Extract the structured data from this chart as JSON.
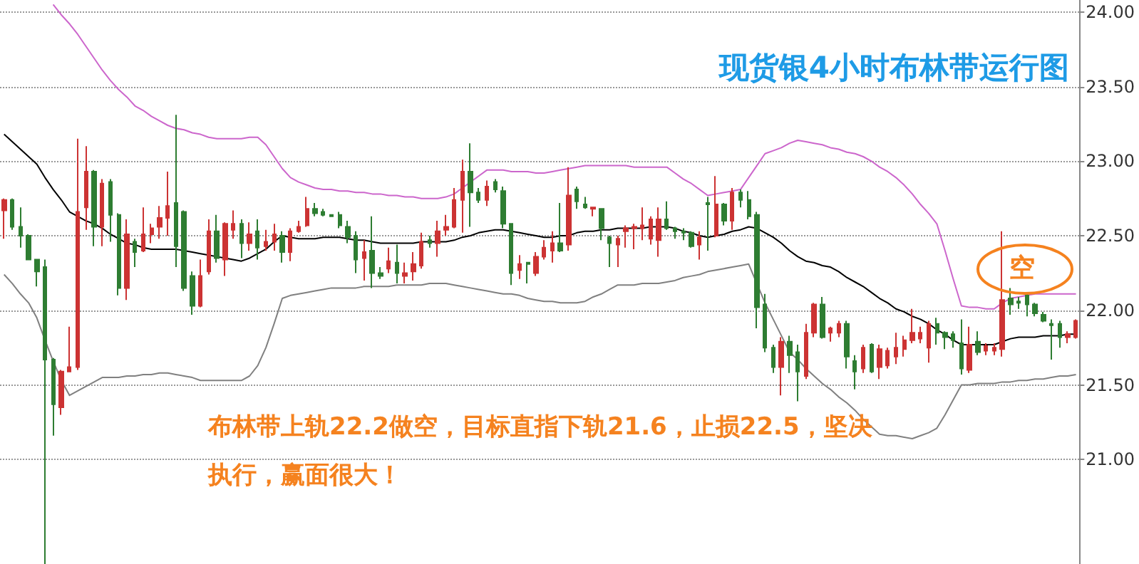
{
  "chart_data": {
    "type": "candlestick",
    "title": "现货银4小时布林带运行图",
    "annotations": [
      "布林带上轨22.2做空，目标直指下轨21.6，止损22.5，坚决执行，赢面很大！",
      "空"
    ],
    "categories": [
      null,
      null,
      null,
      null,
      null,
      null,
      null,
      null,
      null,
      null,
      null,
      null,
      null,
      null,
      null,
      null,
      null,
      null,
      null,
      null,
      null,
      null,
      null,
      null,
      null,
      null,
      null,
      null,
      null,
      null,
      null,
      null,
      null,
      null,
      null,
      null,
      null,
      null,
      null,
      null,
      null,
      null,
      null,
      null,
      null,
      null,
      null,
      null,
      null,
      null,
      null,
      null,
      null,
      null,
      null,
      null,
      null,
      null,
      null,
      null,
      null,
      null,
      null,
      null,
      null,
      null,
      null,
      null,
      null,
      null,
      null,
      null,
      null,
      null,
      null,
      null,
      null,
      null,
      null,
      null,
      null,
      null,
      null,
      null,
      null,
      null,
      null,
      null,
      null,
      null,
      null,
      null,
      null,
      null,
      null,
      null,
      null,
      null,
      null,
      null,
      null,
      null,
      null,
      null,
      null,
      null,
      null,
      null,
      null,
      null,
      null,
      null,
      null,
      null,
      null,
      null,
      null,
      null,
      null,
      null,
      null,
      null,
      null,
      null,
      null,
      null,
      null,
      null,
      null,
      null,
      null,
      null
    ],
    "ohlc": [
      [
        22.67,
        22.75,
        22.48,
        22.74
      ],
      [
        22.74,
        22.75,
        22.54,
        22.56
      ],
      [
        22.56,
        22.69,
        22.42,
        22.5
      ],
      [
        22.5,
        22.51,
        22.34,
        22.34
      ],
      [
        22.34,
        22.34,
        22.16,
        22.26
      ],
      [
        22.29,
        22.34,
        20.3,
        21.67
      ],
      [
        21.67,
        21.68,
        21.16,
        21.37
      ],
      [
        21.35,
        21.6,
        21.3,
        21.59
      ],
      [
        21.59,
        21.89,
        21.59,
        21.62
      ],
      [
        21.62,
        23.15,
        21.6,
        22.66
      ],
      [
        22.69,
        23.1,
        22.54,
        22.93
      ],
      [
        22.93,
        22.94,
        22.43,
        22.56
      ],
      [
        22.56,
        22.88,
        22.43,
        22.85
      ],
      [
        22.86,
        22.88,
        22.46,
        22.64
      ],
      [
        22.64,
        22.65,
        22.1,
        22.15
      ],
      [
        22.15,
        22.61,
        22.07,
        22.51
      ],
      [
        22.46,
        22.48,
        22.29,
        22.39
      ],
      [
        22.4,
        22.69,
        22.39,
        22.51
      ],
      [
        22.51,
        22.58,
        22.45,
        22.55
      ],
      [
        22.56,
        22.7,
        22.48,
        22.62
      ],
      [
        22.62,
        22.93,
        22.5,
        22.7
      ],
      [
        22.72,
        23.31,
        22.29,
        22.43
      ],
      [
        22.66,
        22.67,
        22.13,
        22.15
      ],
      [
        22.23,
        22.26,
        21.97,
        22.03
      ],
      [
        22.03,
        22.34,
        22.02,
        22.23
      ],
      [
        22.26,
        22.61,
        22.24,
        22.53
      ],
      [
        22.53,
        22.64,
        22.32,
        22.35
      ],
      [
        22.34,
        22.59,
        22.23,
        22.58
      ],
      [
        22.54,
        22.67,
        22.48,
        22.58
      ],
      [
        22.58,
        22.61,
        22.35,
        22.45
      ],
      [
        22.45,
        22.59,
        22.4,
        22.51
      ],
      [
        22.53,
        22.61,
        22.34,
        22.42
      ],
      [
        22.43,
        22.54,
        22.4,
        22.46
      ],
      [
        22.46,
        22.58,
        22.4,
        22.51
      ],
      [
        22.5,
        22.53,
        22.32,
        22.39
      ],
      [
        22.39,
        22.55,
        22.33,
        22.53
      ],
      [
        22.53,
        22.6,
        22.52,
        22.56
      ],
      [
        22.57,
        22.76,
        22.56,
        22.68
      ],
      [
        22.68,
        22.72,
        22.63,
        22.65
      ],
      [
        22.66,
        22.68,
        22.63,
        22.64
      ],
      [
        22.64,
        22.64,
        22.63,
        22.63
      ],
      [
        22.64,
        22.66,
        22.55,
        22.57
      ],
      [
        22.56,
        22.6,
        22.45,
        22.49
      ],
      [
        22.5,
        22.53,
        22.25,
        22.34
      ],
      [
        22.35,
        22.47,
        22.2,
        22.39
      ],
      [
        22.4,
        22.63,
        22.15,
        22.25
      ],
      [
        22.25,
        22.29,
        22.21,
        22.23
      ],
      [
        22.28,
        22.42,
        22.25,
        22.33
      ],
      [
        22.32,
        22.44,
        22.18,
        22.25
      ],
      [
        22.23,
        22.32,
        22.18,
        22.25
      ],
      [
        22.26,
        22.39,
        22.2,
        22.31
      ],
      [
        22.3,
        22.52,
        22.28,
        22.46
      ],
      [
        22.47,
        22.5,
        22.42,
        22.45
      ],
      [
        22.45,
        22.6,
        22.36,
        22.53
      ],
      [
        22.54,
        22.64,
        22.5,
        22.56
      ],
      [
        22.56,
        22.82,
        22.55,
        22.74
      ],
      [
        22.74,
        23.01,
        22.52,
        22.93
      ],
      [
        22.93,
        23.12,
        22.56,
        22.79
      ],
      [
        22.79,
        22.82,
        22.72,
        22.74
      ],
      [
        22.74,
        22.87,
        22.7,
        22.83
      ],
      [
        22.86,
        22.88,
        22.79,
        22.81
      ],
      [
        22.8,
        22.83,
        22.55,
        22.58
      ],
      [
        22.58,
        22.58,
        22.17,
        22.25
      ],
      [
        22.27,
        22.37,
        22.21,
        22.31
      ],
      [
        22.32,
        22.32,
        22.18,
        22.31
      ],
      [
        22.25,
        22.39,
        22.23,
        22.36
      ],
      [
        22.36,
        22.47,
        22.34,
        22.42
      ],
      [
        22.4,
        22.53,
        22.32,
        22.45
      ],
      [
        22.45,
        22.72,
        22.39,
        22.4
      ],
      [
        22.44,
        22.96,
        22.4,
        22.77
      ],
      [
        22.81,
        22.83,
        22.68,
        22.73
      ],
      [
        22.71,
        22.76,
        22.68,
        22.69
      ],
      [
        22.68,
        22.69,
        22.63,
        22.69
      ],
      [
        22.68,
        22.68,
        22.47,
        22.55
      ],
      [
        22.49,
        22.5,
        22.29,
        22.45
      ],
      [
        22.44,
        22.5,
        22.29,
        22.48
      ],
      [
        22.53,
        22.57,
        22.42,
        22.55
      ],
      [
        22.55,
        22.58,
        22.41,
        22.56
      ],
      [
        22.55,
        22.69,
        22.47,
        22.57
      ],
      [
        22.48,
        22.63,
        22.44,
        22.61
      ],
      [
        22.47,
        22.69,
        22.36,
        22.61
      ],
      [
        22.61,
        22.73,
        22.54,
        22.55
      ],
      [
        22.55,
        22.56,
        22.48,
        22.53
      ],
      [
        22.53,
        22.55,
        22.47,
        22.52
      ],
      [
        22.52,
        22.53,
        22.42,
        22.43
      ],
      [
        22.44,
        22.53,
        22.34,
        22.49
      ],
      [
        22.72,
        22.76,
        22.4,
        22.71
      ],
      [
        22.5,
        22.9,
        22.49,
        22.71
      ],
      [
        22.71,
        22.72,
        22.57,
        22.6
      ],
      [
        22.6,
        22.82,
        22.54,
        22.79
      ],
      [
        22.79,
        22.81,
        22.69,
        22.74
      ],
      [
        22.74,
        22.8,
        22.61,
        22.63
      ],
      [
        22.64,
        22.66,
        21.88,
        22.02
      ],
      [
        22.04,
        22.11,
        21.72,
        21.75
      ],
      [
        21.75,
        21.77,
        21.58,
        21.62
      ],
      [
        21.62,
        21.82,
        21.43,
        21.79
      ],
      [
        21.79,
        21.83,
        21.58,
        21.7
      ],
      [
        21.72,
        21.77,
        21.39,
        21.59
      ],
      [
        21.56,
        21.91,
        21.54,
        21.85
      ],
      [
        21.85,
        22.05,
        21.82,
        22.04
      ],
      [
        22.04,
        22.09,
        21.81,
        21.82
      ],
      [
        21.85,
        21.89,
        21.79,
        21.88
      ],
      [
        21.85,
        21.93,
        21.82,
        21.91
      ],
      [
        21.91,
        21.93,
        21.61,
        21.69
      ],
      [
        21.66,
        21.7,
        21.47,
        21.59
      ],
      [
        21.61,
        21.77,
        21.58,
        21.75
      ],
      [
        21.77,
        21.78,
        21.58,
        21.59
      ],
      [
        21.62,
        21.77,
        21.54,
        21.74
      ],
      [
        21.63,
        21.75,
        21.61,
        21.73
      ],
      [
        21.69,
        21.85,
        21.64,
        21.75
      ],
      [
        21.74,
        21.83,
        21.69,
        21.8
      ],
      [
        21.8,
        22.01,
        21.78,
        21.85
      ],
      [
        21.81,
        21.89,
        21.78,
        21.85
      ],
      [
        21.75,
        21.93,
        21.65,
        21.91
      ],
      [
        21.91,
        21.95,
        21.77,
        21.85
      ],
      [
        21.85,
        21.86,
        21.74,
        21.82
      ],
      [
        21.84,
        21.86,
        21.75,
        21.8
      ],
      [
        21.78,
        21.94,
        21.57,
        21.61
      ],
      [
        21.6,
        21.89,
        21.58,
        21.77
      ],
      [
        21.79,
        21.86,
        21.7,
        21.72
      ],
      [
        21.73,
        21.78,
        21.7,
        21.76
      ],
      [
        21.73,
        21.78,
        21.7,
        21.75
      ],
      [
        21.74,
        22.53,
        21.69,
        22.07
      ],
      [
        22.08,
        22.15,
        21.97,
        22.04
      ],
      [
        22.06,
        22.09,
        22.01,
        22.05
      ],
      [
        22.1,
        22.11,
        21.96,
        22.04
      ],
      [
        22.04,
        22.05,
        21.96,
        21.98
      ],
      [
        21.97,
        21.99,
        21.92,
        21.93
      ],
      [
        21.91,
        21.94,
        21.67,
        21.9
      ],
      [
        21.91,
        21.93,
        21.75,
        21.82
      ],
      [
        21.82,
        21.86,
        21.78,
        21.84
      ],
      [
        21.82,
        21.94,
        21.81,
        21.93
      ]
    ],
    "colors": [
      "#cc3333",
      "#2e7d32",
      "#2e7d32",
      "#2e7d32",
      "#2e7d32",
      "#2e7d32",
      "#2e7d32",
      "#cc3333",
      "#cc3333",
      "#cc3333",
      "#cc3333",
      "#2e7d32",
      "#cc3333",
      "#2e7d32",
      "#2e7d32",
      "#cc3333",
      "#2e7d32",
      "#cc3333",
      "#cc3333",
      "#cc3333",
      "#cc3333",
      "#2e7d32",
      "#2e7d32",
      "#2e7d32",
      "#cc3333",
      "#cc3333",
      "#2e7d32",
      "#cc3333",
      "#cc3333",
      "#2e7d32",
      "#cc3333",
      "#2e7d32",
      "#cc3333",
      "#cc3333",
      "#2e7d32",
      "#cc3333",
      "#cc3333",
      "#cc3333",
      "#2e7d32",
      "#2e7d32",
      "#2e7d32",
      "#2e7d32",
      "#2e7d32",
      "#2e7d32",
      "#cc3333",
      "#2e7d32",
      "#2e7d32",
      "#cc3333",
      "#2e7d32",
      "#cc3333",
      "#cc3333",
      "#cc3333",
      "#2e7d32",
      "#cc3333",
      "#cc3333",
      "#cc3333",
      "#cc3333",
      "#2e7d32",
      "#2e7d32",
      "#cc3333",
      "#2e7d32",
      "#2e7d32",
      "#2e7d32",
      "#cc3333",
      "#2e7d32",
      "#cc3333",
      "#cc3333",
      "#cc3333",
      "#2e7d32",
      "#cc3333",
      "#2e7d32",
      "#2e7d32",
      "#cc3333",
      "#2e7d32",
      "#2e7d32",
      "#cc3333",
      "#cc3333",
      "#cc3333",
      "#cc3333",
      "#cc3333",
      "#cc3333",
      "#2e7d32",
      "#2e7d32",
      "#2e7d32",
      "#2e7d32",
      "#cc3333",
      "#2e7d32",
      "#cc3333",
      "#2e7d32",
      "#cc3333",
      "#2e7d32",
      "#2e7d32",
      "#2e7d32",
      "#2e7d32",
      "#2e7d32",
      "#cc3333",
      "#2e7d32",
      "#2e7d32",
      "#cc3333",
      "#cc3333",
      "#2e7d32",
      "#cc3333",
      "#cc3333",
      "#2e7d32",
      "#2e7d32",
      "#cc3333",
      "#2e7d32",
      "#cc3333",
      "#cc3333",
      "#cc3333",
      "#cc3333",
      "#cc3333",
      "#cc3333",
      "#cc3333",
      "#2e7d32",
      "#2e7d32",
      "#2e7d32",
      "#2e7d32",
      "#cc3333",
      "#2e7d32",
      "#cc3333",
      "#cc3333",
      "#cc3333",
      "#2e7d32",
      "#2e7d32",
      "#2e7d32",
      "#2e7d32",
      "#2e7d32",
      "#2e7d32",
      "#2e7d32",
      "#cc3333",
      "#cc3333"
    ],
    "series": [
      {
        "type": "line",
        "color": "#cc66cc",
        "values": [
          null,
          null,
          null,
          null,
          null,
          null,
          24.05,
          23.98,
          23.92,
          23.85,
          23.77,
          23.69,
          23.61,
          23.54,
          23.48,
          23.43,
          23.37,
          23.34,
          23.3,
          23.27,
          23.24,
          23.22,
          23.21,
          23.19,
          23.18,
          23.16,
          23.15,
          23.15,
          23.15,
          23.15,
          23.16,
          23.16,
          23.11,
          23.03,
          22.95,
          22.89,
          22.86,
          22.84,
          22.82,
          22.81,
          22.81,
          22.8,
          22.8,
          22.79,
          22.79,
          22.78,
          22.78,
          22.77,
          22.77,
          22.76,
          22.76,
          22.75,
          22.75,
          22.75,
          22.76,
          22.78,
          22.82,
          22.86,
          22.9,
          22.94,
          22.94,
          22.94,
          22.93,
          22.93,
          22.93,
          22.92,
          22.92,
          22.93,
          22.94,
          22.95,
          22.96,
          22.97,
          22.97,
          22.97,
          22.97,
          22.97,
          22.97,
          22.96,
          22.96,
          22.96,
          22.96,
          22.96,
          22.92,
          22.88,
          22.85,
          22.81,
          22.77,
          22.78,
          22.79,
          22.8,
          22.81,
          22.89,
          22.97,
          23.05,
          23.07,
          23.09,
          23.12,
          23.14,
          23.13,
          23.12,
          23.11,
          23.09,
          23.08,
          23.06,
          23.05,
          23.03,
          23.0,
          22.96,
          22.93,
          22.89,
          22.84,
          22.78,
          22.71,
          22.65,
          22.58,
          22.4,
          22.21,
          22.03,
          22.02,
          22.02,
          22.01,
          22.01,
          22.05,
          22.08,
          22.09,
          22.1,
          22.11,
          22.11,
          22.11,
          22.11,
          22.11,
          22.11
        ]
      },
      {
        "type": "line",
        "color": "#000000",
        "values": [
          23.18,
          23.13,
          23.08,
          23.03,
          22.98,
          22.89,
          22.81,
          22.74,
          22.66,
          22.63,
          22.6,
          22.58,
          22.55,
          22.51,
          22.48,
          22.45,
          22.44,
          22.42,
          22.41,
          22.41,
          22.41,
          22.41,
          22.4,
          22.39,
          22.38,
          22.37,
          22.36,
          22.35,
          22.34,
          22.33,
          22.35,
          22.38,
          22.41,
          22.46,
          22.5,
          22.49,
          22.48,
          22.48,
          22.48,
          22.49,
          22.49,
          22.49,
          22.48,
          22.47,
          22.47,
          22.46,
          22.45,
          22.45,
          22.45,
          22.45,
          22.45,
          22.46,
          22.46,
          22.46,
          22.46,
          22.47,
          22.49,
          22.5,
          22.52,
          22.53,
          22.54,
          22.54,
          22.53,
          22.52,
          22.51,
          22.5,
          22.49,
          22.49,
          22.5,
          22.5,
          22.52,
          22.53,
          22.53,
          22.54,
          22.54,
          22.55,
          22.55,
          22.55,
          22.55,
          22.56,
          22.56,
          22.56,
          22.55,
          22.53,
          22.52,
          22.5,
          22.49,
          22.5,
          22.51,
          22.53,
          22.54,
          22.56,
          22.55,
          22.52,
          22.49,
          22.45,
          22.4,
          22.36,
          22.33,
          22.32,
          22.3,
          22.29,
          22.26,
          22.22,
          22.19,
          22.16,
          22.12,
          22.08,
          22.05,
          22.01,
          21.99,
          21.96,
          21.94,
          21.91,
          21.87,
          21.84,
          21.8,
          21.77,
          21.77,
          21.77,
          21.77,
          21.77,
          21.79,
          21.81,
          21.82,
          21.82,
          21.82,
          21.83,
          21.83,
          21.83,
          21.84,
          21.84
        ]
      },
      {
        "type": "line",
        "color": "#808080",
        "values": [
          22.24,
          22.18,
          22.11,
          22.05,
          21.95,
          21.8,
          21.66,
          21.53,
          21.43,
          21.46,
          21.49,
          21.52,
          21.55,
          21.55,
          21.55,
          21.56,
          21.56,
          21.57,
          21.57,
          21.58,
          21.58,
          21.57,
          21.56,
          21.55,
          21.53,
          21.53,
          21.53,
          21.53,
          21.53,
          21.53,
          21.56,
          21.63,
          21.75,
          21.91,
          22.08,
          22.1,
          22.11,
          22.12,
          22.13,
          22.14,
          22.15,
          22.15,
          22.15,
          22.15,
          22.16,
          22.16,
          22.16,
          22.16,
          22.17,
          22.17,
          22.17,
          22.17,
          22.18,
          22.18,
          22.18,
          22.17,
          22.16,
          22.15,
          22.14,
          22.13,
          22.12,
          22.11,
          22.11,
          22.1,
          22.08,
          22.07,
          22.06,
          22.06,
          22.05,
          22.05,
          22.05,
          22.06,
          22.09,
          22.11,
          22.14,
          22.17,
          22.17,
          22.17,
          22.18,
          22.18,
          22.18,
          22.19,
          22.2,
          22.22,
          22.23,
          22.24,
          22.26,
          22.27,
          22.28,
          22.29,
          22.3,
          22.31,
          22.18,
          22.05,
          21.94,
          21.83,
          21.72,
          21.67,
          21.61,
          21.56,
          21.51,
          21.47,
          21.42,
          21.38,
          21.33,
          21.27,
          21.22,
          21.17,
          21.16,
          21.16,
          21.15,
          21.14,
          21.16,
          21.18,
          21.21,
          21.3,
          21.4,
          21.5,
          21.5,
          21.51,
          21.51,
          21.51,
          21.52,
          21.52,
          21.53,
          21.53,
          21.54,
          21.54,
          21.55,
          21.56,
          21.56,
          21.57
        ]
      }
    ],
    "ylim": [
      20.3,
      24.08
    ],
    "yticks": [
      {
        "value": 21,
        "label": "21.00"
      },
      {
        "value": 21.5,
        "label": "21.50"
      },
      {
        "value": 22,
        "label": "22.00"
      },
      {
        "value": 22.5,
        "label": "22.50"
      },
      {
        "value": 23,
        "label": "23.00"
      },
      {
        "value": 23.5,
        "label": "23.50"
      },
      {
        "value": 24,
        "label": "24.00"
      }
    ],
    "grid": "y",
    "tick_labels": "y"
  }
}
